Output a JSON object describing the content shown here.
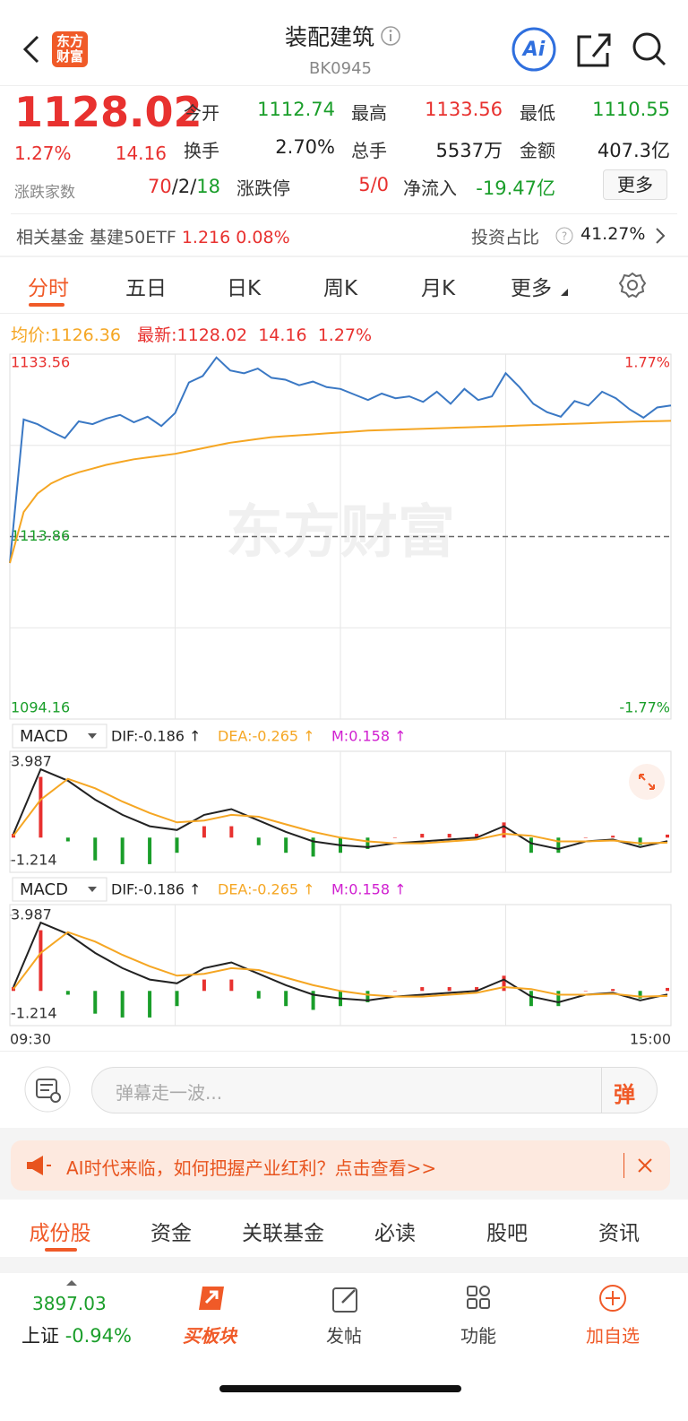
{
  "header": {
    "logo": "东方财富",
    "title": "装配建筑",
    "code": "BK0945"
  },
  "quote": {
    "price": "1128.02",
    "change_pct": "1.27%",
    "change": "14.16",
    "stats": [
      {
        "label": "今开",
        "value": "1112.74",
        "color": "#1a9e2a"
      },
      {
        "label": "最高",
        "value": "1133.56",
        "color": "#e8312f"
      },
      {
        "label": "最低",
        "value": "1110.55",
        "color": "#1a9e2a"
      },
      {
        "label": "换手",
        "value": "2.70%",
        "color": "#222222"
      },
      {
        "label": "总手",
        "value": "5537万",
        "color": "#222222"
      },
      {
        "label": "金额",
        "value": "407.3亿",
        "color": "#222222"
      },
      {
        "label": "涨跌停",
        "value": "5/0",
        "color": "#e8312f"
      },
      {
        "label": "净流入",
        "value": "-19.47亿",
        "color": "#1a9e2a"
      }
    ],
    "breadth_label": "涨跌家数",
    "breadth": [
      "70",
      "/",
      "2",
      "/",
      "18"
    ],
    "more": "更多"
  },
  "fund": {
    "label": "相关基金",
    "name": "基建50ETF",
    "price": "1.216",
    "pct": "0.08%",
    "invest_label": "投资占比",
    "invest_value": "41.27%"
  },
  "tabs": [
    "分时",
    "五日",
    "日K",
    "周K",
    "月K",
    "更多"
  ],
  "legend": {
    "avg_label": "均价:",
    "avg": "1126.36",
    "latest_label": "最新:",
    "latest": "1128.02",
    "change": "14.16",
    "pct": "1.27%"
  },
  "watermark": "东方财富",
  "chart_data": [
    {
      "type": "line",
      "x": [
        "09:30",
        "09:35",
        "09:40",
        "09:45",
        "09:50",
        "09:55",
        "10:00",
        "10:05",
        "10:10",
        "10:15",
        "10:20",
        "10:25",
        "10:30",
        "10:35",
        "10:40",
        "10:45",
        "10:50",
        "10:55",
        "11:00",
        "11:05",
        "11:10",
        "11:15",
        "11:20",
        "11:25",
        "11:30",
        "13:05",
        "13:10",
        "13:15",
        "13:20",
        "13:25",
        "13:30",
        "13:35",
        "13:40",
        "13:45",
        "13:50",
        "13:55",
        "14:00",
        "14:05",
        "14:10",
        "14:15",
        "14:20",
        "14:25",
        "14:30",
        "14:35",
        "14:40",
        "14:45",
        "14:50",
        "14:55",
        "15:00"
      ],
      "series": [
        {
          "name": "最新",
          "color": "#3a78c4",
          "values": [
            1111.0,
            1126.5,
            1126.0,
            1125.2,
            1124.5,
            1126.3,
            1126.0,
            1126.6,
            1127.0,
            1126.2,
            1126.8,
            1125.8,
            1127.2,
            1130.5,
            1131.2,
            1133.2,
            1131.8,
            1131.5,
            1132.0,
            1131.0,
            1130.8,
            1130.2,
            1130.6,
            1130.0,
            1129.8,
            1129.2,
            1128.6,
            1129.3,
            1128.8,
            1129.0,
            1128.4,
            1129.5,
            1128.2,
            1129.8,
            1128.6,
            1129.0,
            1131.5,
            1130.0,
            1128.2,
            1127.3,
            1126.8,
            1128.5,
            1128.0,
            1129.5,
            1128.8,
            1127.6,
            1126.7,
            1127.8,
            1128.02
          ]
        },
        {
          "name": "均价",
          "color": "#f5a623",
          "values": [
            1111.0,
            1116.5,
            1118.5,
            1119.6,
            1120.3,
            1120.8,
            1121.2,
            1121.6,
            1121.9,
            1122.2,
            1122.4,
            1122.6,
            1122.8,
            1123.1,
            1123.4,
            1123.7,
            1124.0,
            1124.2,
            1124.4,
            1124.6,
            1124.7,
            1124.8,
            1124.9,
            1125.0,
            1125.1,
            1125.2,
            1125.3,
            1125.35,
            1125.4,
            1125.45,
            1125.5,
            1125.55,
            1125.6,
            1125.65,
            1125.7,
            1125.75,
            1125.8,
            1125.85,
            1125.9,
            1125.95,
            1126.0,
            1126.05,
            1126.1,
            1126.15,
            1126.2,
            1126.25,
            1126.3,
            1126.33,
            1126.36
          ]
        }
      ],
      "ylim": [
        1094.16,
        1133.56
      ],
      "yticks": [
        1094.16,
        1113.86,
        1133.56
      ],
      "y2lim": [
        -1.77,
        1.77
      ],
      "y2ticks": [
        {
          "value": -1.77,
          "label": "-1.77%"
        },
        {
          "value": 1.77,
          "label": "1.77%"
        }
      ],
      "grid": true
    },
    {
      "type": "macd",
      "indicator": "MACD",
      "x": [
        "09:30",
        "09:40",
        "09:50",
        "10:00",
        "10:10",
        "10:20",
        "10:30",
        "10:40",
        "10:50",
        "11:00",
        "11:10",
        "11:20",
        "11:30",
        "13:10",
        "13:20",
        "13:30",
        "13:40",
        "13:50",
        "14:00",
        "14:10",
        "14:20",
        "14:30",
        "14:40",
        "14:50",
        "15:00"
      ],
      "series": [
        {
          "name": "DIF:-0.186 ↑",
          "color": "#222222",
          "values": [
            0.2,
            3.6,
            3.0,
            2.0,
            1.2,
            0.6,
            0.4,
            1.2,
            1.5,
            0.9,
            0.3,
            -0.2,
            -0.4,
            -0.5,
            -0.3,
            -0.2,
            -0.1,
            0.0,
            0.6,
            -0.3,
            -0.6,
            -0.2,
            -0.1,
            -0.5,
            -0.186
          ]
        },
        {
          "name": "DEA:-0.265 ↑",
          "color": "#f5a623",
          "values": [
            0.1,
            2.0,
            3.1,
            2.6,
            1.9,
            1.3,
            0.8,
            0.9,
            1.2,
            1.1,
            0.7,
            0.3,
            0.0,
            -0.2,
            -0.3,
            -0.3,
            -0.2,
            -0.1,
            0.2,
            0.1,
            -0.2,
            -0.2,
            -0.15,
            -0.3,
            -0.265
          ]
        },
        {
          "name": "M:0.158 ↑",
          "color": "#d020d0",
          "kind": "bar",
          "values": [
            0.2,
            3.2,
            -0.2,
            -1.2,
            -1.4,
            -1.4,
            -0.8,
            0.6,
            0.6,
            -0.4,
            -0.8,
            -1.0,
            -0.8,
            -0.6,
            0,
            0.2,
            0.2,
            0.2,
            0.8,
            -0.8,
            -0.8,
            0,
            0.1,
            -0.4,
            0.158
          ]
        }
      ],
      "bar_colors": [
        "#e8312f",
        "#1a9e2a"
      ],
      "ylim": [
        -1.83,
        4.55
      ],
      "yticks": [
        -1.214,
        3.987
      ],
      "xticks": [
        "09:30",
        "15:00"
      ]
    }
  ],
  "input": {
    "placeholder": "弹幕走一波...",
    "button": "弹"
  },
  "banner": {
    "text": "AI时代来临，如何把握产业红利？点击查看>>"
  },
  "sections": [
    "成份股",
    "资金",
    "关联基金",
    "必读",
    "股吧",
    "资讯"
  ],
  "bottom": {
    "index_value": "3897.03",
    "index_name": "上证",
    "index_pct": "-0.94%",
    "items": [
      "买板块",
      "发帖",
      "功能",
      "加自选"
    ]
  }
}
